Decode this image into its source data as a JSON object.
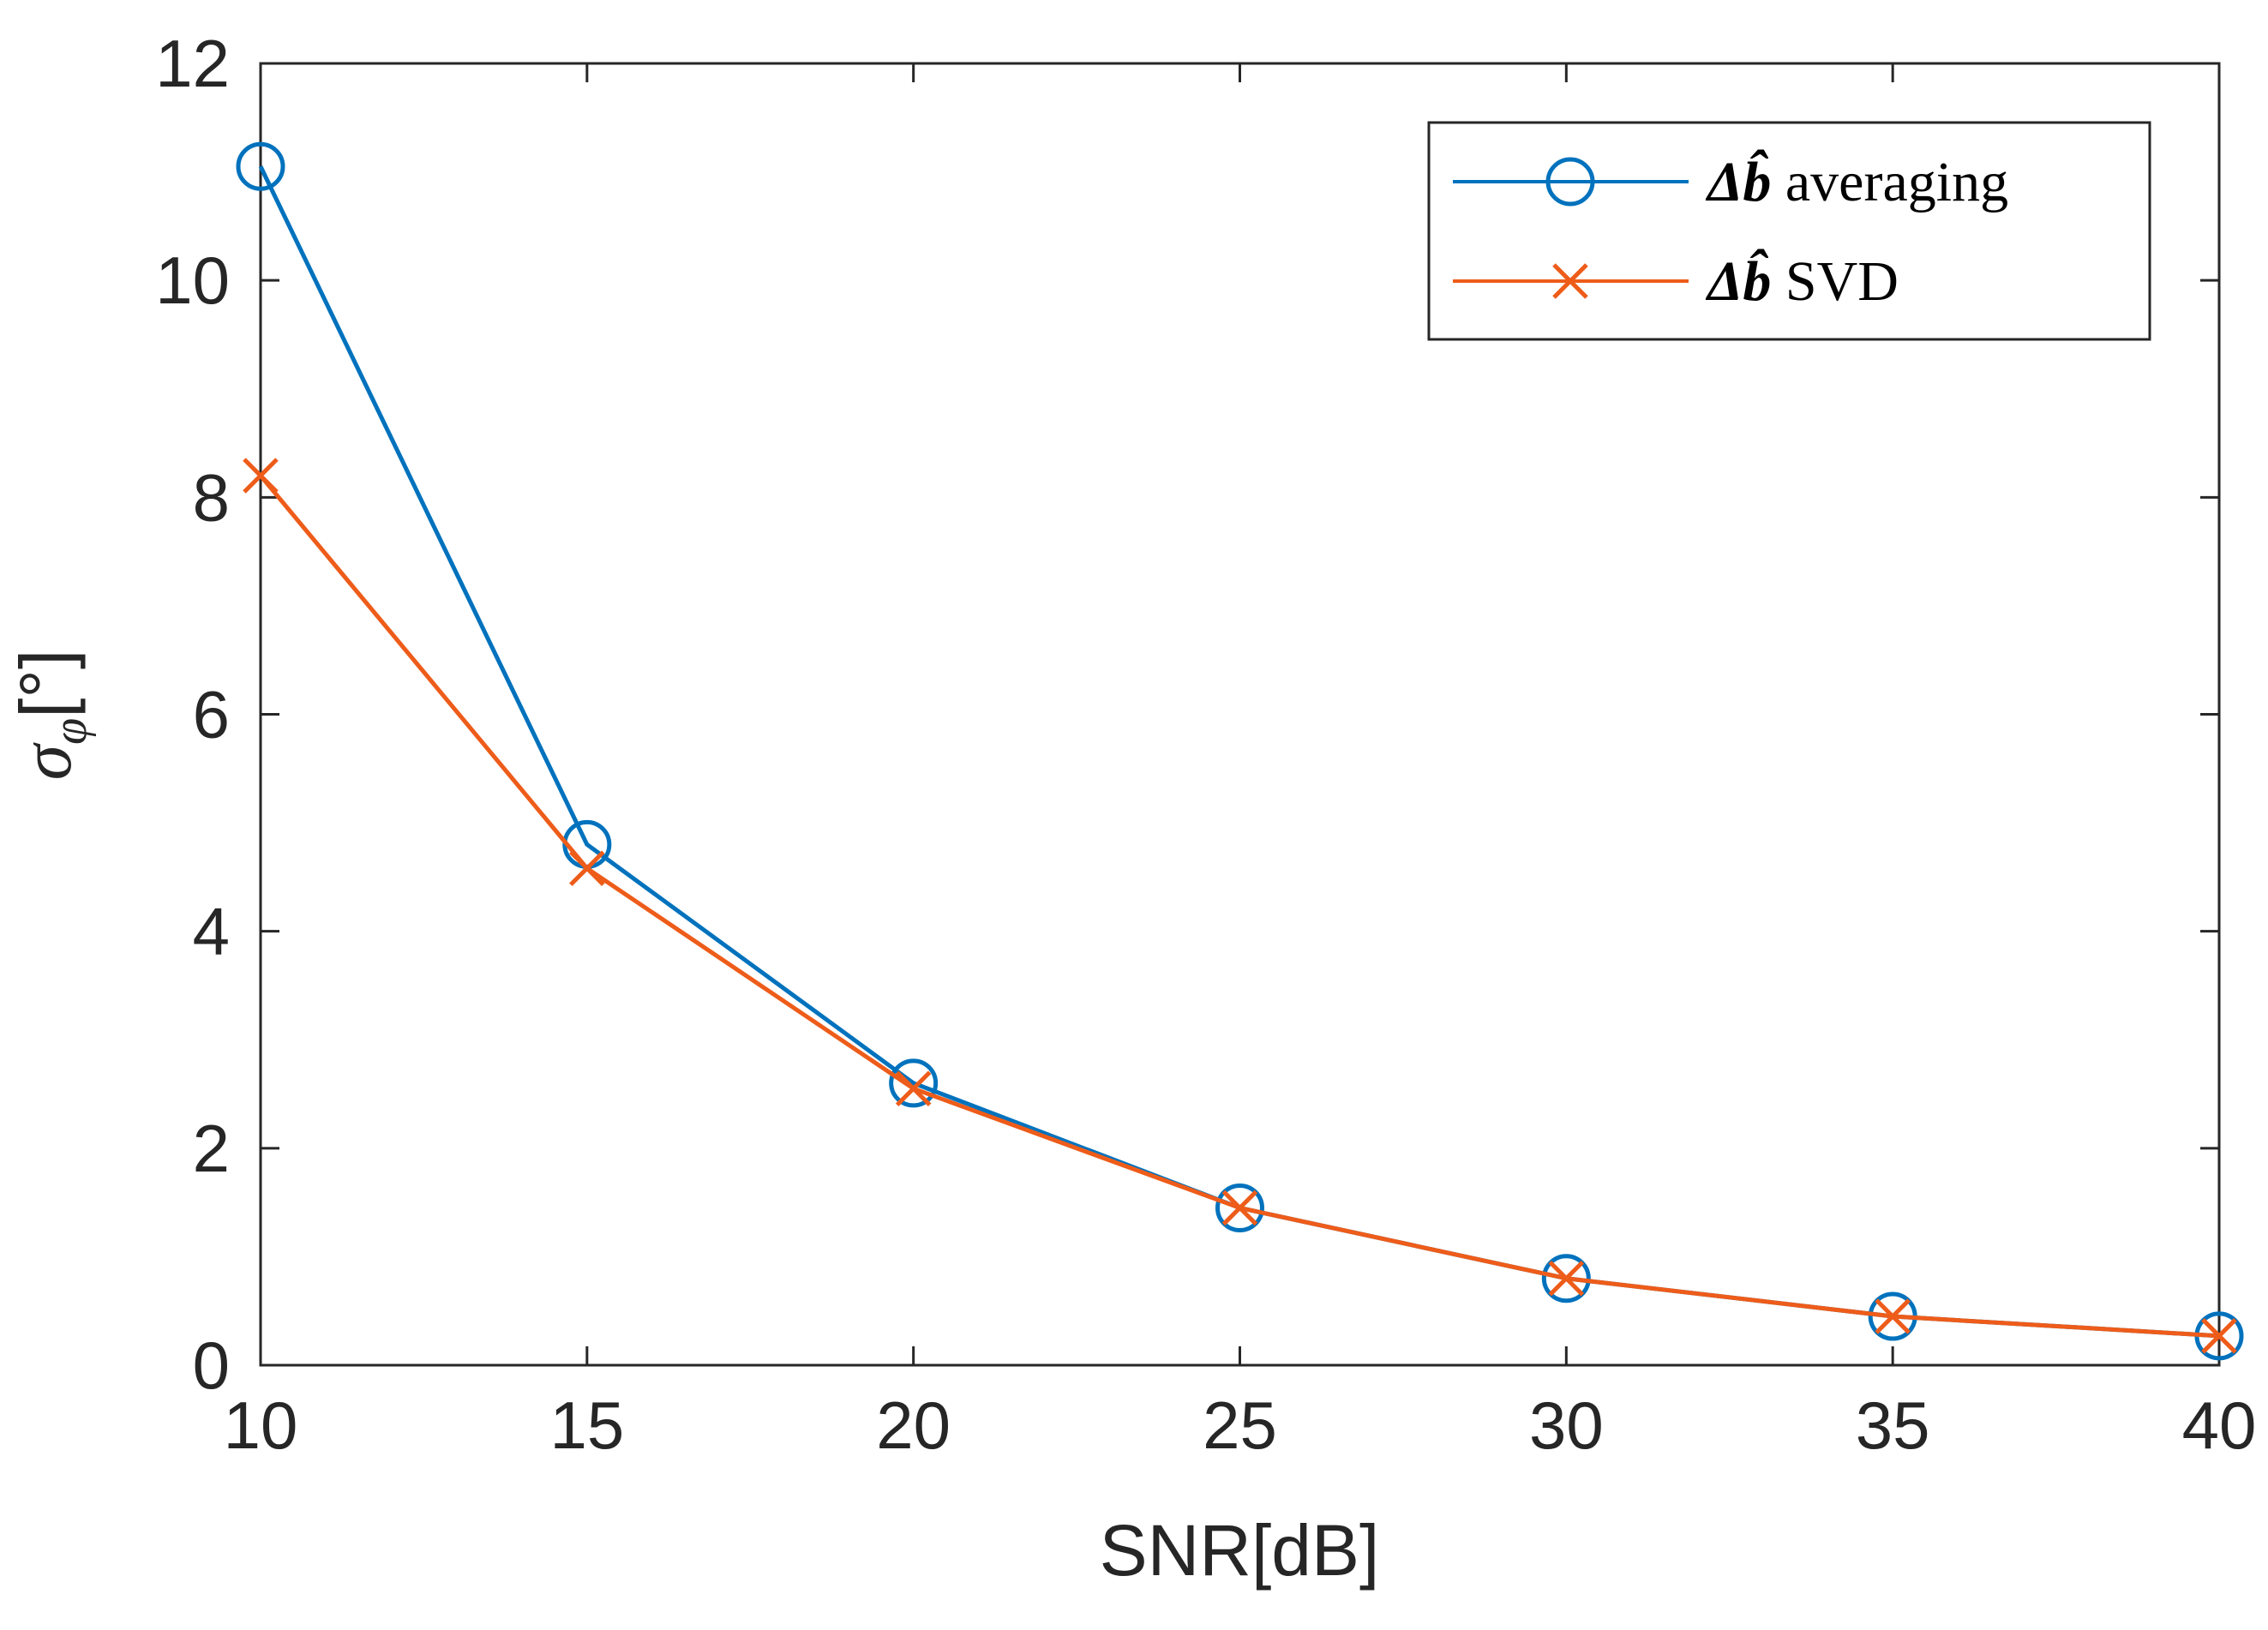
{
  "chart_data": {
    "type": "line",
    "title": "",
    "xlabel": "SNR[dB]",
    "ylabel": {
      "main": "σ",
      "subscript": "φ",
      "suffix": "[°]"
    },
    "x": [
      10,
      15,
      20,
      25,
      30,
      35,
      40
    ],
    "xlim": [
      10,
      40
    ],
    "ylim": [
      0,
      12
    ],
    "xticks": [
      10,
      15,
      20,
      25,
      30,
      35,
      40
    ],
    "yticks": [
      0,
      2,
      4,
      6,
      8,
      10,
      12
    ],
    "grid": false,
    "legend_position": "top-right",
    "series": [
      {
        "name": "Δb̂ averaging",
        "legend_symbol": "Δb̂",
        "legend_text": "averaging",
        "marker": "circle",
        "color": "#0072BD",
        "values": [
          11.05,
          4.8,
          2.6,
          1.45,
          0.8,
          0.45,
          0.27
        ]
      },
      {
        "name": "Δb̂ SVD",
        "legend_symbol": "Δb̂",
        "legend_text": "SVD",
        "marker": "x",
        "color": "#EE5C1A",
        "values": [
          8.2,
          4.58,
          2.55,
          1.45,
          0.8,
          0.45,
          0.27
        ]
      }
    ]
  }
}
